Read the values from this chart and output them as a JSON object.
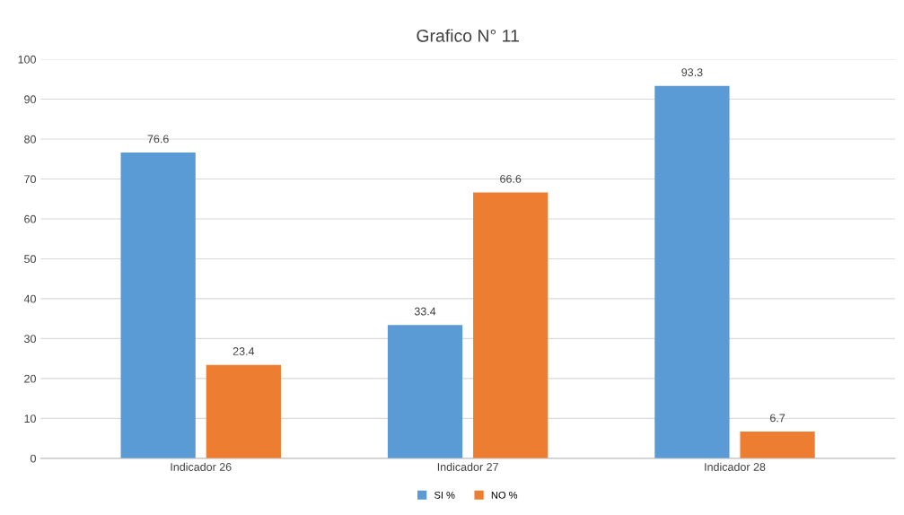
{
  "chart_data": {
    "type": "bar",
    "title": "Grafico N° 11",
    "categories": [
      "Indicador 26",
      "Indicador 27",
      "Indicador 28"
    ],
    "series": [
      {
        "name": "SI %",
        "color": "#5b9bd5",
        "values": [
          76.6,
          33.4,
          93.3
        ]
      },
      {
        "name": "NO %",
        "color": "#ed7d31",
        "values": [
          23.4,
          66.6,
          6.7
        ]
      }
    ],
    "ylim": [
      0,
      100
    ],
    "yticks": [
      0,
      10,
      20,
      30,
      40,
      50,
      60,
      70,
      80,
      90,
      100
    ],
    "grid": "y",
    "legend": "bottom",
    "data_labels": true
  }
}
